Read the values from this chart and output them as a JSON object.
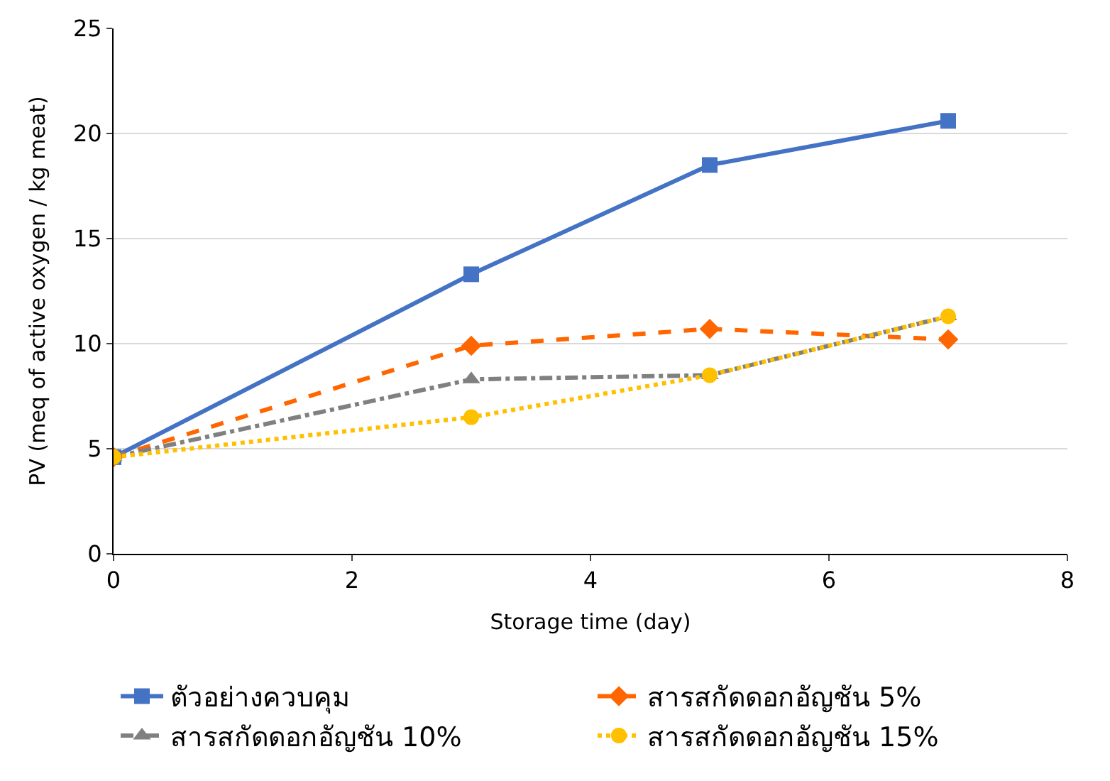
{
  "chart_data": {
    "type": "line",
    "xlabel": "Storage time (day)",
    "ylabel": "PV (meq of active oxygen / kg meat)",
    "x": [
      0,
      3,
      5,
      7
    ],
    "series": [
      {
        "name": "ตัวอย่างควบคุม",
        "color": "#4472c4",
        "values": [
          4.6,
          13.3,
          18.5,
          20.6
        ],
        "marker": "square",
        "line_style": "solid"
      },
      {
        "name": "สารสกัดดอกอัญชัน 5%",
        "color": "#ff6600",
        "values": [
          4.6,
          9.9,
          10.7,
          10.2
        ],
        "marker": "diamond",
        "line_style": "dashed"
      },
      {
        "name": "สารสกัดดอกอัญชัน 10%",
        "color": "#808080",
        "values": [
          4.6,
          8.3,
          8.5,
          11.3
        ],
        "marker": "triangle",
        "line_style": "dashdot"
      },
      {
        "name": "สารสกัดดอกอัญชัน 15%",
        "color": "#ffc000",
        "values": [
          4.6,
          6.5,
          8.5,
          11.3
        ],
        "marker": "circle",
        "line_style": "dotted"
      }
    ],
    "xlim": [
      0,
      8
    ],
    "xticks": [
      0,
      2,
      4,
      6,
      8
    ],
    "ylim": [
      0,
      25
    ],
    "yticks": [
      0,
      5,
      10,
      15,
      20,
      25
    ],
    "grid": "y",
    "legend": "bottom"
  }
}
